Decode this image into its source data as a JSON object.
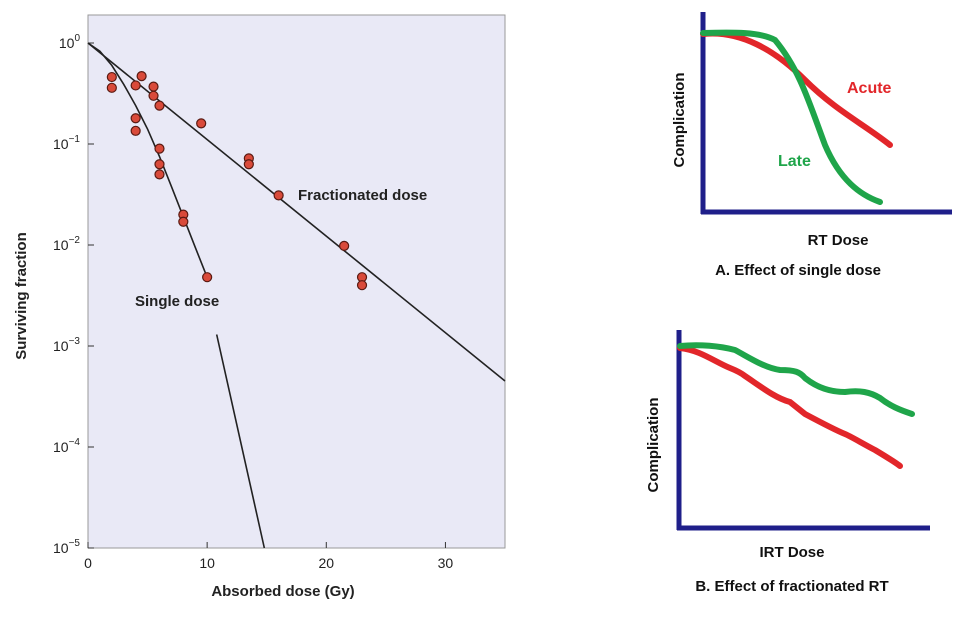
{
  "chart_data": [
    {
      "type": "scatter",
      "title": "",
      "xlabel": "Absorbed dose (Gy)",
      "ylabel": "Surviving fraction",
      "xlim": [
        0,
        35
      ],
      "ylim": [
        1e-05,
        1
      ],
      "yscale": "log",
      "x_ticks": [
        "0",
        "10",
        "20",
        "30"
      ],
      "y_ticks": [
        {
          "base": "10",
          "exp": "0"
        },
        {
          "base": "10",
          "exp": "−1"
        },
        {
          "base": "10",
          "exp": "−2"
        },
        {
          "base": "10",
          "exp": "−3"
        },
        {
          "base": "10",
          "exp": "−4"
        },
        {
          "base": "10",
          "exp": "−5"
        }
      ],
      "grid": false,
      "background": "#e9e9f6",
      "point_color": "#d94a3a",
      "series": [
        {
          "name": "Single dose",
          "points": [
            {
              "x": 2,
              "y": 0.46
            },
            {
              "x": 2,
              "y": 0.36
            },
            {
              "x": 4,
              "y": 0.38
            },
            {
              "x": 4,
              "y": 0.18
            },
            {
              "x": 4,
              "y": 0.135
            },
            {
              "x": 6,
              "y": 0.09
            },
            {
              "x": 6,
              "y": 0.063
            },
            {
              "x": 6,
              "y": 0.05
            },
            {
              "x": 8,
              "y": 0.02
            },
            {
              "x": 8,
              "y": 0.017
            },
            {
              "x": 10,
              "y": 0.0048
            }
          ],
          "curve": [
            {
              "x": 0,
              "y": 1.0
            },
            {
              "x": 1,
              "y": 0.83
            },
            {
              "x": 2,
              "y": 0.6
            },
            {
              "x": 3,
              "y": 0.39
            },
            {
              "x": 4,
              "y": 0.24
            },
            {
              "x": 5,
              "y": 0.14
            },
            {
              "x": 6,
              "y": 0.075
            },
            {
              "x": 7,
              "y": 0.038
            },
            {
              "x": 8,
              "y": 0.019
            },
            {
              "x": 9,
              "y": 0.0095
            },
            {
              "x": 10,
              "y": 0.0048
            }
          ],
          "extrapolation": [
            {
              "x": 10.8,
              "y": 0.0013
            },
            {
              "x": 14.8,
              "y": 1e-05
            }
          ]
        },
        {
          "name": "Fractionated dose",
          "points": [
            {
              "x": 4.5,
              "y": 0.47
            },
            {
              "x": 5.5,
              "y": 0.37
            },
            {
              "x": 5.5,
              "y": 0.3
            },
            {
              "x": 6,
              "y": 0.24
            },
            {
              "x": 9.5,
              "y": 0.16
            },
            {
              "x": 13.5,
              "y": 0.072
            },
            {
              "x": 13.5,
              "y": 0.063
            },
            {
              "x": 16,
              "y": 0.031
            },
            {
              "x": 21.5,
              "y": 0.0098
            },
            {
              "x": 23,
              "y": 0.0048
            },
            {
              "x": 23,
              "y": 0.004
            }
          ],
          "curve": [
            {
              "x": 0,
              "y": 1.0
            },
            {
              "x": 35,
              "y": 0.00045
            }
          ]
        }
      ]
    },
    {
      "type": "line",
      "title": "A. Effect of single dose",
      "xlabel": "RT Dose",
      "ylabel": "Complication",
      "series": [
        {
          "name": "Acute",
          "color": "#e2262a"
        },
        {
          "name": "Late",
          "color": "#1fa54a"
        }
      ],
      "axis_color": "#1f1f8a"
    },
    {
      "type": "line",
      "title": "B. Effect of fractionated RT",
      "xlabel": "IRT Dose",
      "ylabel": "Complication",
      "series": [
        {
          "color": "#e2262a"
        },
        {
          "color": "#1fa54a"
        }
      ],
      "axis_color": "#1f1f8a"
    }
  ]
}
